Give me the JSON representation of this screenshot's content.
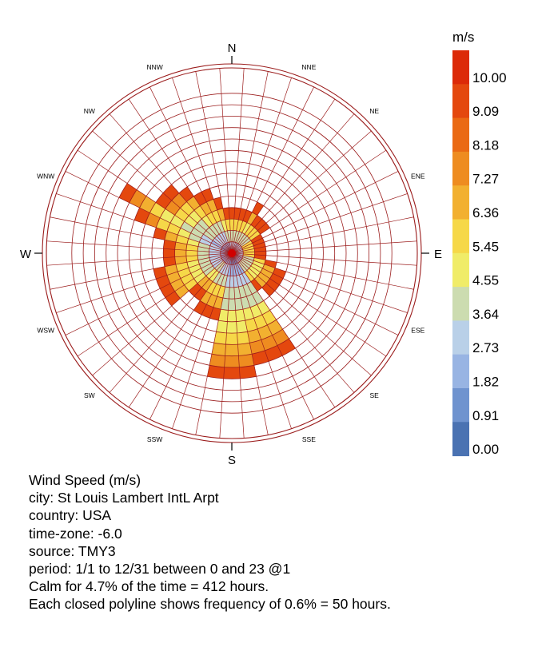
{
  "chart_data": {
    "type": "wind-rose",
    "directions": [
      "N",
      "NNE",
      "NE",
      "ENE",
      "E",
      "ESE",
      "SE",
      "SSE",
      "S",
      "SSW",
      "SW",
      "WSW",
      "W",
      "WNW",
      "NW",
      "NNW"
    ],
    "speed_bins": [
      {
        "min": 0.0,
        "max": 0.91,
        "color": "#4a72b2"
      },
      {
        "min": 0.91,
        "max": 1.82,
        "color": "#6f93cf"
      },
      {
        "min": 1.82,
        "max": 2.73,
        "color": "#98b4e3"
      },
      {
        "min": 2.73,
        "max": 3.64,
        "color": "#b9d0e8"
      },
      {
        "min": 3.64,
        "max": 4.55,
        "color": "#ccdcb0"
      },
      {
        "min": 4.55,
        "max": 5.45,
        "color": "#f0ec68"
      },
      {
        "min": 5.45,
        "max": 6.36,
        "color": "#f6d848"
      },
      {
        "min": 6.36,
        "max": 7.27,
        "color": "#f2b030"
      },
      {
        "min": 7.27,
        "max": 8.18,
        "color": "#ee8c20"
      },
      {
        "min": 8.18,
        "max": 9.09,
        "color": "#ea6a14"
      },
      {
        "min": 9.09,
        "max": 10.0,
        "color": "#e4480e"
      },
      {
        "min": 10.0,
        "max": null,
        "color": "#dc2a08"
      }
    ],
    "ring_step_percent": 0.6,
    "rings": 14,
    "sector_subdivisions": 3,
    "frequency_rings": [
      [
        1,
        1,
        1
      ],
      [
        1,
        1,
        1
      ],
      [
        1,
        1,
        1
      ],
      [
        1,
        1,
        1
      ],
      [
        1,
        1,
        1
      ],
      [
        1,
        1,
        1
      ],
      [
        1,
        1,
        1
      ],
      [
        1,
        1,
        1
      ],
      [
        1,
        1,
        1
      ],
      [
        1,
        1,
        1
      ],
      [
        1,
        1,
        1
      ],
      [
        1,
        1,
        1
      ],
      [
        1,
        1,
        1
      ],
      [
        1,
        1,
        1
      ],
      [
        1,
        1,
        1
      ],
      [
        1,
        1,
        1
      ]
    ],
    "sector_reach_rings": [
      [
        4,
        4,
        4
      ],
      [
        4,
        4,
        5
      ],
      [
        4,
        4,
        4
      ],
      [
        3,
        3,
        3
      ],
      [
        3,
        3,
        3
      ],
      [
        4,
        5,
        5
      ],
      [
        5,
        5,
        4
      ],
      [
        10,
        10,
        10
      ],
      [
        11,
        11,
        11
      ],
      [
        6,
        6,
        6
      ],
      [
        5,
        5,
        7
      ],
      [
        7,
        7,
        7
      ],
      [
        6,
        6,
        6
      ],
      [
        7,
        9,
        11
      ],
      [
        8,
        8,
        7
      ],
      [
        6,
        6,
        5
      ]
    ],
    "legend": {
      "unit": "m/s",
      "ticks": [
        "10.00",
        "9.09",
        "8.18",
        "7.27",
        "6.36",
        "5.45",
        "4.55",
        "3.64",
        "2.73",
        "1.82",
        "0.91",
        "0.00"
      ]
    }
  },
  "compass": {
    "N": "N",
    "S": "S",
    "E": "E",
    "W": "W",
    "NNE": "NNE",
    "NE": "NE",
    "ENE": "ENE",
    "ESE": "ESE",
    "SE": "SE",
    "SSE": "SSE",
    "SSW": "SSW",
    "SW": "SW",
    "WSW": "WSW",
    "WNW": "WNW",
    "NW": "NW",
    "NNW": "NNW"
  },
  "info": {
    "line1": "Wind Speed (m/s)",
    "line2": "city: St Louis Lambert IntL Arpt",
    "line3": "country: USA",
    "line4": "time-zone: -6.0",
    "line5": "source: TMY3",
    "line6": "period: 1/1 to 12/31 between 0 and 23 @1",
    "line7": "Calm for 4.7% of the time = 412 hours.",
    "line8": "Each closed polyline shows frequency of 0.6% = 50 hours."
  }
}
